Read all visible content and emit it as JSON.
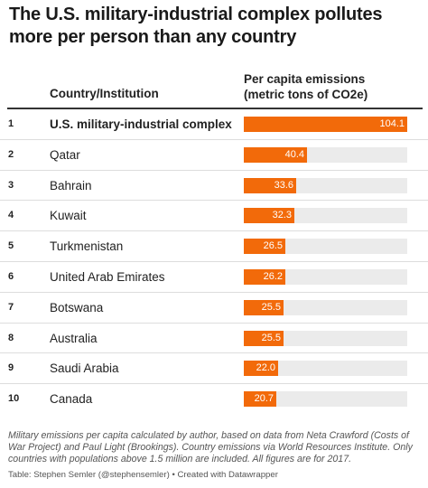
{
  "title": "The U.S. military-industrial complex pollutes more per person than any country",
  "columns": {
    "country": "Country/Institution",
    "value_line1": "Per capita emissions",
    "value_line2": "(metric tons of CO2e)"
  },
  "chart_data": {
    "type": "bar",
    "orientation": "horizontal",
    "xlim": [
      0,
      104.1
    ],
    "grid": false,
    "legend": "none",
    "bar_color": "#f26a0a",
    "track_color": "#ebebeb",
    "ranks": [
      "1",
      "2",
      "3",
      "4",
      "5",
      "6",
      "7",
      "8",
      "9",
      "10"
    ],
    "categories": [
      "U.S. military-industrial complex",
      "Qatar",
      "Bahrain",
      "Kuwait",
      "Turkmenistan",
      "United Arab Emirates",
      "Botswana",
      "Australia",
      "Saudi Arabia",
      "Canada"
    ],
    "values": [
      104.1,
      40.4,
      33.6,
      32.3,
      26.5,
      26.2,
      25.5,
      25.5,
      22.0,
      20.7
    ],
    "value_labels": [
      "104.1",
      "40.4",
      "33.6",
      "32.3",
      "26.5",
      "26.2",
      "25.5",
      "25.5",
      "22.0",
      "20.7"
    ]
  },
  "notes": "Military emissions per capita calculated by author, based on data from Neta Crawford (Costs of War Project) and Paul Light (Brookings). Country emissions via World Resources Institute. Only countries with populations above 1.5 million are included. All figures are for 2017.",
  "credit": "Table: Stephen Semler (@stephensemler) • Created with Datawrapper"
}
